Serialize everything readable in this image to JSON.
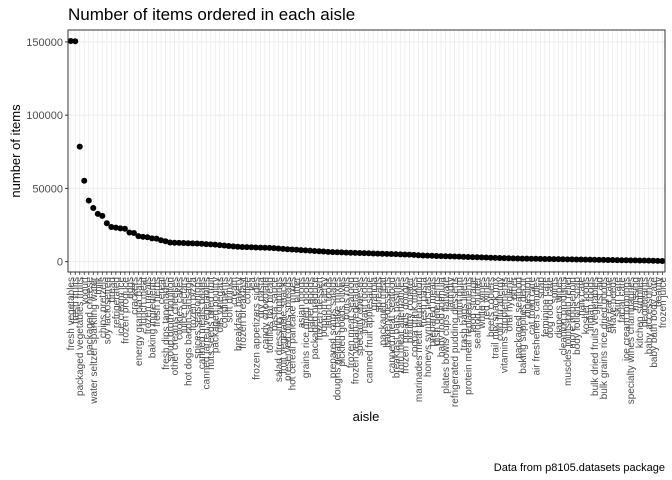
{
  "chart_data": {
    "type": "scatter",
    "title": "Number of items ordered in each aisle",
    "xlabel": "aisle",
    "ylabel": "number of items",
    "caption": "Data from p8105.datasets package",
    "color": "#000000",
    "grid": true,
    "ylim": [
      -7058,
      158117
    ],
    "yticks": [
      0,
      50000,
      100000,
      150000
    ],
    "categories": [
      "fresh vegetables",
      "fresh fruits",
      "packaged vegetables fruits",
      "yogurt",
      "packaged cheese",
      "water seltzer sparkling water",
      "milk",
      "chips pretzels",
      "soy lactosefree",
      "bread",
      "refrigerated",
      "ice cream ice",
      "frozen produce",
      "eggs",
      "crackers",
      "energy granola bars",
      "lunch meat",
      "frozen meals",
      "baking ingredients",
      "fresh herbs",
      "cereal",
      "fresh dips tapenades",
      "soup broth bouillon",
      "other creams cheeses",
      "cookies cakes",
      "juice nectars",
      "hot dogs bacon sausage",
      "frozen pizza",
      "spices seasonings",
      "canned meals beans",
      "canned jarred vegetables",
      "nuts seeds dried fruit",
      "packaged poultry",
      "oils vinegars",
      "condiments",
      "soft drinks",
      "cream",
      "breakfast bakery",
      "frozen breakfast",
      "coffee",
      "tea",
      "frozen appetizers sides",
      "dry pasta",
      "candy chocolate",
      "tortillas flat bread",
      "pasta sauce",
      "salad dressing toppings",
      "fruit vegetable snacks",
      "preserved dips spreads",
      "hot cereal pancake mixes",
      "butter",
      "asian foods",
      "grains rice dried goods",
      "paper goods",
      "packaged produce",
      "frozen dessert",
      "popcorn jerky",
      "latino foods",
      "prepared soups salads",
      "doughs gelatins bake mixes",
      "pickled goods olives",
      "buns rolls",
      "frozen meat seafood",
      "frozen vegan vegetarian",
      "specialty cheeses",
      "instant foods",
      "canned fruit applesauce",
      "granola",
      "spreads",
      "packaged meat",
      "bakery desserts",
      "canned meat seafood",
      "breakfast bars pastries",
      "tofu meat alternatives",
      "frozen breads doughs",
      "poultry counter",
      "cocoa drink mixes",
      "marinades meat preparation",
      "fresh pasta",
      "honeys syrups nectars",
      "prepared meals",
      "dish detergents",
      "baby food formula",
      "plates bowls cups flatware",
      "laundry",
      "refrigerated pudding desserts",
      "mint gum",
      "trash bags liners",
      "protein meal replacements",
      "food storage",
      "seafood counter",
      "white wines",
      "red wines",
      "beers coolers",
      "trail mix snack mix",
      "cold flu allergy",
      "vitamins supplements",
      "oral hygiene",
      "other",
      "packaged seafood",
      "baking supplies decor",
      "digestion",
      "cat food care",
      "air fresheners candles",
      "soap",
      "feminine care",
      "dog food care",
      "spirits",
      "diapers wipes",
      "cleaning products",
      "muscles joints pain relief",
      "more household",
      "body lotions soap",
      "hair care",
      "kosher foods",
      "indian foods",
      "bulk dried fruits vegetables",
      "first aid",
      "bulk grains rice dried goods",
      "eye ear care",
      "shave needs",
      "skin care",
      "facial care",
      "ice cream toppings",
      "specialty wines champagnes",
      "missing",
      "kitchen supplies",
      "deodorants",
      "baby accessories",
      "baby bath body care",
      "beauty",
      "frozen juice"
    ],
    "values": [
      150609,
      150473,
      78493,
      55240,
      41699,
      36617,
      32644,
      31269,
      26240,
      23635,
      23228,
      22676,
      22453,
      19875,
      19592,
      17449,
      16957,
      16700,
      15900,
      15700,
      14600,
      13900,
      13100,
      12900,
      12800,
      12700,
      12600,
      12500,
      12400,
      12200,
      12000,
      11800,
      11600,
      11300,
      11000,
      10700,
      10400,
      10200,
      10000,
      9900,
      9800,
      9700,
      9600,
      9500,
      9400,
      9200,
      9000,
      8700,
      8500,
      8300,
      8100,
      7900,
      7700,
      7500,
      7300,
      7100,
      6900,
      6700,
      6500,
      6400,
      6300,
      6200,
      6100,
      6000,
      5900,
      5800,
      5700,
      5600,
      5500,
      5400,
      5300,
      5200,
      5100,
      5000,
      4900,
      4800,
      4600,
      4400,
      4200,
      4100,
      4000,
      3900,
      3800,
      3700,
      3600,
      3500,
      3400,
      3300,
      3200,
      3100,
      3000,
      2900,
      2800,
      2700,
      2600,
      2500,
      2400,
      2300,
      2200,
      2150,
      2100,
      2050,
      2000,
      1950,
      1900,
      1850,
      1800,
      1750,
      1700,
      1650,
      1600,
      1550,
      1500,
      1450,
      1400,
      1350,
      1300,
      1250,
      1200,
      1150,
      1100,
      1050,
      1000,
      950,
      900,
      850,
      800,
      750,
      700,
      650,
      550,
      450
    ]
  }
}
